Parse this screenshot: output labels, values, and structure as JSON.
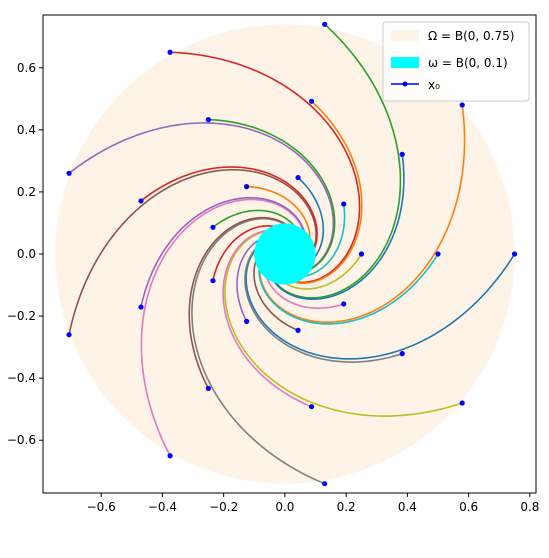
{
  "chart_data": {
    "type": "line",
    "title": "",
    "xlabel": "",
    "ylabel": "",
    "xlim": [
      -0.79,
      0.82
    ],
    "ylim": [
      -0.77,
      0.77
    ],
    "xticks": [
      -0.6,
      -0.4,
      -0.2,
      0.0,
      0.2,
      0.4,
      0.6,
      0.8
    ],
    "yticks": [
      -0.6,
      -0.4,
      -0.2,
      0.0,
      0.2,
      0.4,
      0.6
    ],
    "xtick_labels": [
      "−0.6",
      "−0.4",
      "−0.2",
      "0.0",
      "0.2",
      "0.4",
      "0.6",
      "0.8"
    ],
    "ytick_labels": [
      "−0.6",
      "−0.4",
      "−0.2",
      "0.0",
      "0.2",
      "0.4",
      "0.6"
    ],
    "grid": false,
    "legend_position": "top-right",
    "regions": {
      "outer": {
        "center": [
          0,
          0
        ],
        "radius": 0.75,
        "color": "#fdf3e6"
      },
      "inner": {
        "center": [
          0,
          0
        ],
        "radius": 0.1,
        "color": "#00ffff"
      }
    },
    "legend": [
      {
        "label": "Ω = B(0, 0.75)",
        "kind": "patch",
        "color": "#fdf3e6"
      },
      {
        "label": "ω = B(0, 0.1)",
        "kind": "patch",
        "color": "#00ffff"
      },
      {
        "label": "x₀",
        "kind": "line-marker",
        "color": "#0000ff"
      }
    ],
    "spiral": {
      "type": "logarithmic",
      "rotation_sense": "clockwise",
      "end_radius": 0.04,
      "turn_per_ln_radius": 1.6
    },
    "series_colors": [
      "#1f77b4",
      "#ff7f0e",
      "#2ca02c",
      "#d62728",
      "#9467bd",
      "#8c564b",
      "#e377c2",
      "#7f7f7f",
      "#bcbd22",
      "#17becf"
    ],
    "initial_points": [
      {
        "x": 0.75,
        "y": 0.0
      },
      {
        "x": 0.579,
        "y": 0.48
      },
      {
        "x": 0.13,
        "y": 0.74
      },
      {
        "x": -0.375,
        "y": 0.65
      },
      {
        "x": -0.705,
        "y": 0.26
      },
      {
        "x": -0.705,
        "y": -0.26
      },
      {
        "x": -0.375,
        "y": -0.65
      },
      {
        "x": 0.13,
        "y": -0.74
      },
      {
        "x": 0.579,
        "y": -0.48
      },
      {
        "x": 0.5,
        "y": 0.0
      },
      {
        "x": 0.383,
        "y": 0.321
      },
      {
        "x": 0.087,
        "y": 0.492
      },
      {
        "x": -0.25,
        "y": 0.433
      },
      {
        "x": -0.47,
        "y": 0.171
      },
      {
        "x": -0.47,
        "y": -0.171
      },
      {
        "x": -0.25,
        "y": -0.433
      },
      {
        "x": 0.087,
        "y": -0.492
      },
      {
        "x": 0.383,
        "y": -0.321
      },
      {
        "x": 0.25,
        "y": 0.0
      },
      {
        "x": 0.192,
        "y": 0.161
      },
      {
        "x": 0.043,
        "y": 0.246
      },
      {
        "x": -0.125,
        "y": 0.217
      },
      {
        "x": -0.235,
        "y": 0.086
      },
      {
        "x": -0.235,
        "y": -0.086
      },
      {
        "x": -0.125,
        "y": -0.217
      },
      {
        "x": 0.043,
        "y": -0.246
      },
      {
        "x": 0.192,
        "y": -0.161
      }
    ]
  }
}
